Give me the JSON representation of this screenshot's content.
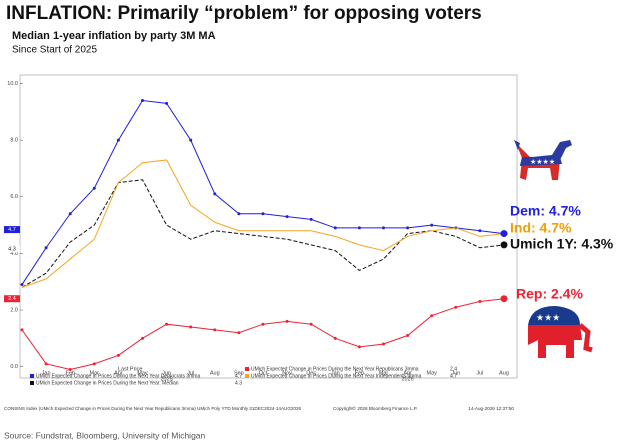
{
  "chart_data": {
    "type": "line",
    "title": "INFLATION: Primarily “problem” for opposing voters",
    "subtitle": "Median 1-year inflation by party 3M MA",
    "subtitle2": "Since Start of 2025",
    "categories": [
      null,
      "Jan",
      "Feb",
      "Mar",
      "Apr",
      "May",
      "Jun",
      "Jul",
      "Aug",
      "Sep",
      "Oct",
      "Nov",
      "Dec",
      "Jan",
      "Feb",
      "Mar",
      "Apr",
      "May",
      "Jun",
      "Jul",
      "Aug"
    ],
    "year_labels": [
      "2025",
      "2026"
    ],
    "ylim": [
      -0.4,
      10.3
    ],
    "yticks": [
      {
        "value": 0,
        "label": "0.0"
      },
      {
        "value": 2,
        "label": "2.0"
      },
      {
        "value": 4,
        "label": "4.0"
      },
      {
        "value": 6,
        "label": "6.0"
      },
      {
        "value": 8,
        "label": "8.0"
      },
      {
        "value": 10,
        "label": "10.0"
      }
    ],
    "legend_title": "Last Price",
    "series": [
      {
        "name": "UMich Expected Change in Prices During the Next Year Democrats 3mma",
        "color": "#1f1fdd",
        "dashed": false,
        "values": [
          2.9,
          4.2,
          5.4,
          6.3,
          8.0,
          9.4,
          9.3,
          8.0,
          6.1,
          5.4,
          5.4,
          5.3,
          5.2,
          4.9,
          4.9,
          4.9,
          4.9,
          5.0,
          4.9,
          4.8,
          4.7
        ]
      },
      {
        "name": "UMich Expected Change in Prices During the Next Year: Median",
        "color": "#111111",
        "dashed": true,
        "values": [
          2.8,
          3.3,
          4.4,
          5.0,
          6.5,
          6.6,
          5.0,
          4.5,
          4.8,
          4.7,
          4.6,
          4.5,
          4.3,
          4.1,
          3.4,
          3.8,
          4.7,
          4.8,
          4.6,
          4.2,
          4.3
        ]
      },
      {
        "name": "UMich Expected Change in Prices During the Next Year Republicans 3mma",
        "color": "#ee2233",
        "dashed": false,
        "values": [
          1.3,
          0.1,
          -0.1,
          0.1,
          0.4,
          1.0,
          1.5,
          1.4,
          1.3,
          1.2,
          1.5,
          1.6,
          1.5,
          1.0,
          0.7,
          0.8,
          1.1,
          1.8,
          2.1,
          2.3,
          2.4
        ]
      },
      {
        "name": "UMich Expected Change in Prices During the Next Year Independents 3mma",
        "color": "#f5a623",
        "dashed": false,
        "values": [
          2.8,
          3.1,
          3.8,
          4.5,
          6.5,
          7.2,
          7.3,
          5.7,
          5.1,
          4.8,
          4.8,
          4.8,
          4.8,
          4.6,
          4.3,
          4.1,
          4.6,
          4.8,
          4.9,
          4.6,
          4.7
        ]
      }
    ],
    "annotations": [
      "Dem: 4.7%",
      "Ind: 4.7%",
      "Umich 1Y: 4.3%",
      "Rep: 2.4%"
    ],
    "footer_left": "CONSINS Index (UMich Expected Change in Prices During the Next Year Republicans 3mma) UMich Poly YTD Monthly 31DEC2024-14AUG2026",
    "footer_mid": "Copyright© 2026 Bloomberg Finance L.P.",
    "footer_right": "14-Aug-2026 12:37:50",
    "source": "Source: Fundstrat, Bloomberg, University of Michigan"
  }
}
